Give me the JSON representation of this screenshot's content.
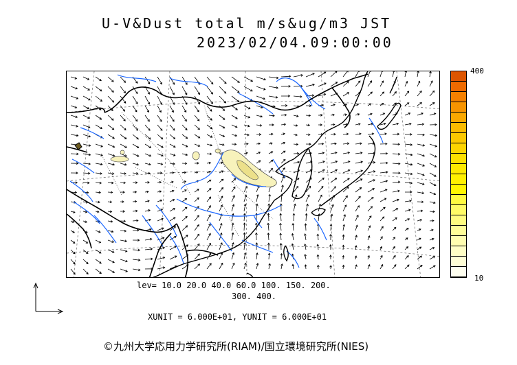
{
  "title": {
    "line1": "U-V&Dust total m/s&ug/m3 JST",
    "line2": "2023/02/04.09:00:00"
  },
  "legend": {
    "levels_line1": "lev= 10.0 20.0 40.0 60.0 100. 150. 200.",
    "levels_line2": "300. 400.",
    "colorbar_max": "400",
    "colorbar_min": "10",
    "colors": [
      "#dd5500",
      "#ee6a00",
      "#f58000",
      "#f89400",
      "#faa800",
      "#fbbb00",
      "#fcc800",
      "#fdd400",
      "#fde000",
      "#fee900",
      "#fff000",
      "#fff600",
      "#fffa40",
      "#fffb66",
      "#fffc80",
      "#fffd99",
      "#fffdb0",
      "#fffec5",
      "#fffed6",
      "#fffff0"
    ]
  },
  "units": {
    "text": "XUNIT = 6.000E+01, YUNIT = 6.000E+01"
  },
  "copyright": "©九州大学応用力学研究所(RIAM)/国立環境研究所(NIES)",
  "colors": {
    "rivers": "#1a66ff",
    "coast": "#000000",
    "dust_light": "#f7f2bb",
    "dust_mid": "#ece08a",
    "dust_dark": "#6b5a1e"
  }
}
